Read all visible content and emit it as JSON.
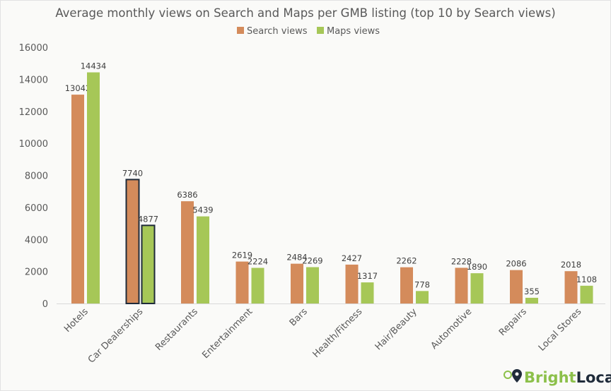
{
  "chart_data": {
    "type": "bar",
    "title": "Average monthly views on Search and Maps per GMB listing (top 10 by Search views)",
    "categories": [
      "Hotels",
      "Car Dealerships",
      "Restaurants",
      "Entertainment",
      "Bars",
      "Health/Fitness",
      "Hair/Beauty",
      "Automotive",
      "Repairs",
      "Local Stores"
    ],
    "series": [
      {
        "name": "Search views",
        "color": "#d48b5b",
        "values": [
          13042,
          7740,
          6386,
          2619,
          2484,
          2427,
          2262,
          2228,
          2086,
          2018
        ]
      },
      {
        "name": "Maps views",
        "color": "#a6c757",
        "values": [
          14434,
          4877,
          5439,
          2224,
          2269,
          1317,
          778,
          1890,
          355,
          1108
        ]
      }
    ],
    "highlighted_category": "Car Dealerships",
    "highlight_color": "#1f2b3a",
    "ylim": [
      0,
      16000
    ],
    "yticks": [
      0,
      2000,
      4000,
      6000,
      8000,
      10000,
      12000,
      14000,
      16000
    ],
    "grid": false,
    "legend": "top-center",
    "xlabel": "",
    "ylabel": ""
  },
  "logo": {
    "text_a": "Bright",
    "text_b": "Local",
    "color_a": "#8cc04a",
    "color_b": "#1f2b3a"
  }
}
